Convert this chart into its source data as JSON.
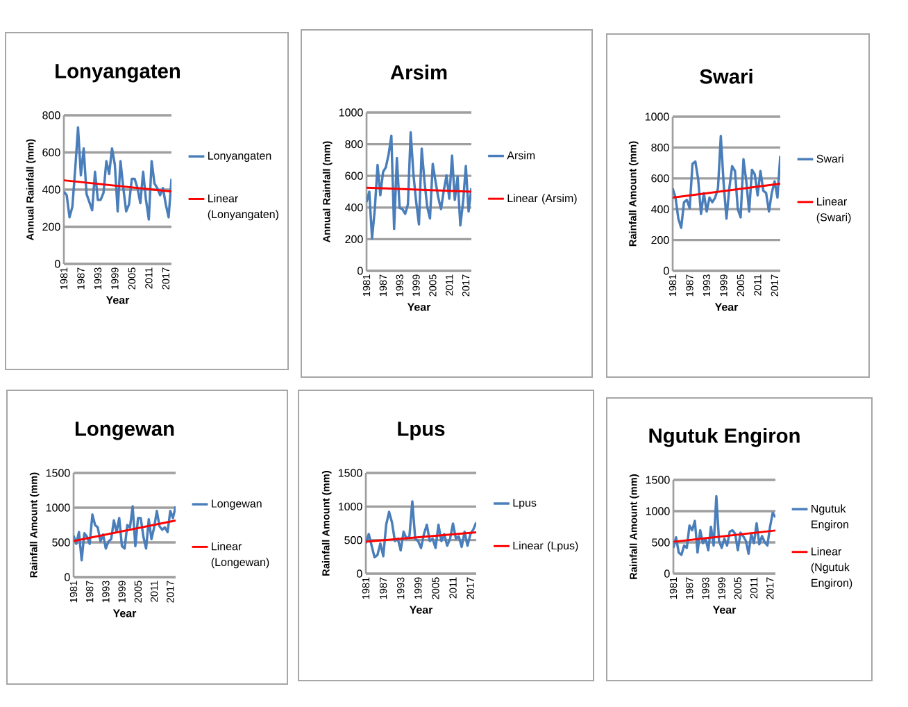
{
  "chart_data": [
    {
      "type": "line",
      "title": "Lonyangaten",
      "xlabel": "Year",
      "ylabel": "Annual Rainfall  (mm)",
      "categories": [
        "1981",
        null,
        null,
        null,
        null,
        null,
        "1987",
        null,
        null,
        null,
        null,
        null,
        "1993",
        null,
        null,
        null,
        null,
        null,
        "1999",
        null,
        null,
        null,
        null,
        null,
        "2005",
        null,
        null,
        null,
        null,
        null,
        "2011",
        null,
        null,
        null,
        null,
        null,
        "2017",
        null,
        null
      ],
      "ylim": [
        0,
        800
      ],
      "yticks": [
        0,
        200,
        400,
        600,
        800
      ],
      "grid": "y",
      "legend": "right",
      "series": [
        {
          "name": "Lonyangaten",
          "color": "#4a7ebb",
          "values": [
            389,
            370,
            251,
            308,
            509,
            735,
            477,
            622,
            377,
            333,
            289,
            496,
            345,
            345,
            383,
            553,
            484,
            622,
            534,
            283,
            553,
            408,
            283,
            320,
            458,
            458,
            408,
            327,
            496,
            345,
            239,
            553,
            433,
            408,
            370,
            408,
            320,
            251,
            458
          ]
        },
        {
          "name": "Linear (Lonyangaten)",
          "color": "#ff0000",
          "values": [
            450,
            null,
            null,
            null,
            null,
            null,
            null,
            null,
            null,
            null,
            null,
            null,
            null,
            null,
            null,
            null,
            null,
            null,
            null,
            null,
            null,
            null,
            null,
            null,
            null,
            null,
            null,
            null,
            null,
            null,
            null,
            null,
            null,
            null,
            null,
            null,
            null,
            null,
            390
          ]
        }
      ]
    },
    {
      "type": "line",
      "title": "Arsim",
      "xlabel": "Year",
      "ylabel": "Annual Rainfall  (mm)",
      "categories": [
        "1981",
        null,
        null,
        null,
        null,
        null,
        "1987",
        null,
        null,
        null,
        null,
        null,
        "1993",
        null,
        null,
        null,
        null,
        null,
        "1999",
        null,
        null,
        null,
        null,
        null,
        "2005",
        null,
        null,
        null,
        null,
        null,
        "2011",
        null,
        null,
        null,
        null,
        null,
        "2017",
        null,
        null
      ],
      "ylim": [
        0,
        1000
      ],
      "yticks": [
        0,
        200,
        400,
        600,
        800,
        1000
      ],
      "grid": "y",
      "legend": "right",
      "series": [
        {
          "name": "Arsim",
          "color": "#4a7ebb",
          "values": [
            434,
            500,
            206,
            390,
            669,
            478,
            625,
            654,
            735,
            853,
            265,
            713,
            397,
            390,
            360,
            419,
            875,
            610,
            434,
            294,
            772,
            566,
            404,
            331,
            676,
            566,
            463,
            390,
            507,
            603,
            456,
            728,
            448,
            595,
            287,
            434,
            662,
            375,
            522
          ]
        },
        {
          "name": "Linear (Arsim)",
          "color": "#ff0000",
          "values": [
            525,
            null,
            null,
            null,
            null,
            null,
            null,
            null,
            null,
            null,
            null,
            null,
            null,
            null,
            null,
            null,
            null,
            null,
            null,
            null,
            null,
            null,
            null,
            null,
            null,
            null,
            null,
            null,
            null,
            null,
            null,
            null,
            null,
            null,
            null,
            null,
            null,
            null,
            500
          ]
        }
      ]
    },
    {
      "type": "line",
      "title": "Swari",
      "xlabel": "Year",
      "ylabel": "Rainfall  Amount  (mm)",
      "categories": [
        "1981",
        null,
        null,
        null,
        null,
        null,
        "1987",
        null,
        null,
        null,
        null,
        null,
        "1993",
        null,
        null,
        null,
        null,
        null,
        "1999",
        null,
        null,
        null,
        null,
        null,
        "2005",
        null,
        null,
        null,
        null,
        null,
        "2011",
        null,
        null,
        null,
        null,
        null,
        "2017",
        null,
        null
      ],
      "ylim": [
        0,
        1000
      ],
      "yticks": [
        0,
        200,
        400,
        600,
        800,
        1000
      ],
      "grid": "y",
      "legend": "right",
      "series": [
        {
          "name": "Swari",
          "color": "#4a7ebb",
          "values": [
            535,
            475,
            339,
            279,
            445,
            460,
            407,
            694,
            709,
            596,
            369,
            505,
            385,
            475,
            445,
            475,
            535,
            875,
            566,
            339,
            535,
            679,
            648,
            400,
            347,
            724,
            581,
            385,
            656,
            626,
            490,
            648,
            520,
            505,
            385,
            505,
            581,
            475,
            746
          ]
        },
        {
          "name": "Linear (Swari)",
          "color": "#ff0000",
          "values": [
            475,
            null,
            null,
            null,
            null,
            null,
            null,
            null,
            null,
            null,
            null,
            null,
            null,
            null,
            null,
            null,
            null,
            null,
            null,
            null,
            null,
            null,
            null,
            null,
            null,
            null,
            null,
            null,
            null,
            null,
            null,
            null,
            null,
            null,
            null,
            null,
            null,
            null,
            565
          ]
        }
      ]
    },
    {
      "type": "line",
      "title": "Longewan",
      "xlabel": "Year",
      "ylabel": "Rainfall  Amount  (mm)",
      "categories": [
        "1981",
        null,
        null,
        null,
        null,
        null,
        "1987",
        null,
        null,
        null,
        null,
        null,
        "1993",
        null,
        null,
        null,
        null,
        null,
        "1999",
        null,
        null,
        null,
        null,
        null,
        "2005",
        null,
        null,
        null,
        null,
        null,
        "2011",
        null,
        null,
        null,
        null,
        null,
        "2017",
        null,
        null
      ],
      "ylim": [
        0,
        1500
      ],
      "yticks": [
        0,
        500,
        1000,
        1500
      ],
      "grid": "y",
      "legend": "right",
      "series": [
        {
          "name": "Longewan",
          "color": "#4a7ebb",
          "values": [
            598,
            480,
            649,
            243,
            632,
            581,
            480,
            902,
            750,
            716,
            513,
            615,
            412,
            513,
            547,
            817,
            649,
            851,
            446,
            412,
            750,
            716,
            1020,
            446,
            851,
            851,
            581,
            412,
            834,
            547,
            716,
            953,
            733,
            682,
            716,
            649,
            953,
            851,
            1020
          ]
        },
        {
          "name": "Linear (Longewan)",
          "color": "#ff0000",
          "values": [
            520,
            null,
            null,
            null,
            null,
            null,
            null,
            null,
            null,
            null,
            null,
            null,
            null,
            null,
            null,
            null,
            null,
            null,
            null,
            null,
            null,
            null,
            null,
            null,
            null,
            null,
            null,
            null,
            null,
            null,
            null,
            null,
            null,
            null,
            null,
            null,
            null,
            null,
            815
          ]
        }
      ]
    },
    {
      "type": "line",
      "title": "Lpus",
      "xlabel": "Year",
      "ylabel": "Rainfall  Amount  (mm)",
      "categories": [
        "1981",
        null,
        null,
        null,
        null,
        null,
        "1987",
        null,
        null,
        null,
        null,
        null,
        "1993",
        null,
        null,
        null,
        null,
        null,
        "1999",
        null,
        null,
        null,
        null,
        null,
        "2005",
        null,
        null,
        null,
        null,
        null,
        "2011",
        null,
        null,
        null,
        null,
        null,
        "2017",
        null,
        null
      ],
      "ylim": [
        0,
        1500
      ],
      "yticks": [
        0,
        500,
        1000,
        1500
      ],
      "grid": "y",
      "legend": "right",
      "series": [
        {
          "name": "Lpus",
          "color": "#4a7ebb",
          "values": [
            451,
            590,
            416,
            243,
            278,
            451,
            260,
            729,
            920,
            763,
            486,
            521,
            347,
            625,
            521,
            555,
            1076,
            521,
            486,
            382,
            590,
            729,
            486,
            521,
            382,
            729,
            486,
            590,
            416,
            521,
            746,
            521,
            555,
            399,
            625,
            416,
            590,
            659,
            763
          ]
        },
        {
          "name": "Linear (Lpus)",
          "color": "#ff0000",
          "values": [
            475,
            null,
            null,
            null,
            null,
            null,
            null,
            null,
            null,
            null,
            null,
            null,
            null,
            null,
            null,
            null,
            null,
            null,
            null,
            null,
            null,
            null,
            null,
            null,
            null,
            null,
            null,
            null,
            null,
            null,
            null,
            null,
            null,
            null,
            null,
            null,
            null,
            null,
            615
          ]
        }
      ]
    },
    {
      "type": "line",
      "title": "Ngutuk Engiron",
      "xlabel": "Year",
      "ylabel": "Rainfall  Amount  (mm)",
      "categories": [
        "1981",
        null,
        null,
        null,
        null,
        null,
        "1987",
        null,
        null,
        null,
        null,
        null,
        "1993",
        null,
        null,
        null,
        null,
        null,
        "1999",
        null,
        null,
        null,
        null,
        null,
        "2005",
        null,
        null,
        null,
        null,
        null,
        "2011",
        null,
        null,
        null,
        null,
        null,
        "2017",
        null,
        null
      ],
      "ylim": [
        0,
        1500
      ],
      "yticks": [
        0,
        500,
        1000,
        1500
      ],
      "grid": "y",
      "legend": "right",
      "series": [
        {
          "name": "Ngutuk Engiron",
          "color": "#4a7ebb",
          "values": [
            413,
            581,
            338,
            300,
            450,
            413,
            769,
            694,
            844,
            338,
            694,
            488,
            563,
            375,
            750,
            450,
            1238,
            525,
            413,
            563,
            450,
            675,
            694,
            638,
            375,
            656,
            600,
            525,
            319,
            638,
            488,
            806,
            469,
            600,
            506,
            450,
            750,
            975,
            900
          ]
        },
        {
          "name": "Linear (Ngutuk Engiron)",
          "color": "#ff0000",
          "values": [
            510,
            null,
            null,
            null,
            null,
            null,
            null,
            null,
            null,
            null,
            null,
            null,
            null,
            null,
            null,
            null,
            null,
            null,
            null,
            null,
            null,
            null,
            null,
            null,
            null,
            null,
            null,
            null,
            null,
            null,
            null,
            null,
            null,
            null,
            null,
            null,
            null,
            null,
            690
          ]
        }
      ]
    }
  ]
}
